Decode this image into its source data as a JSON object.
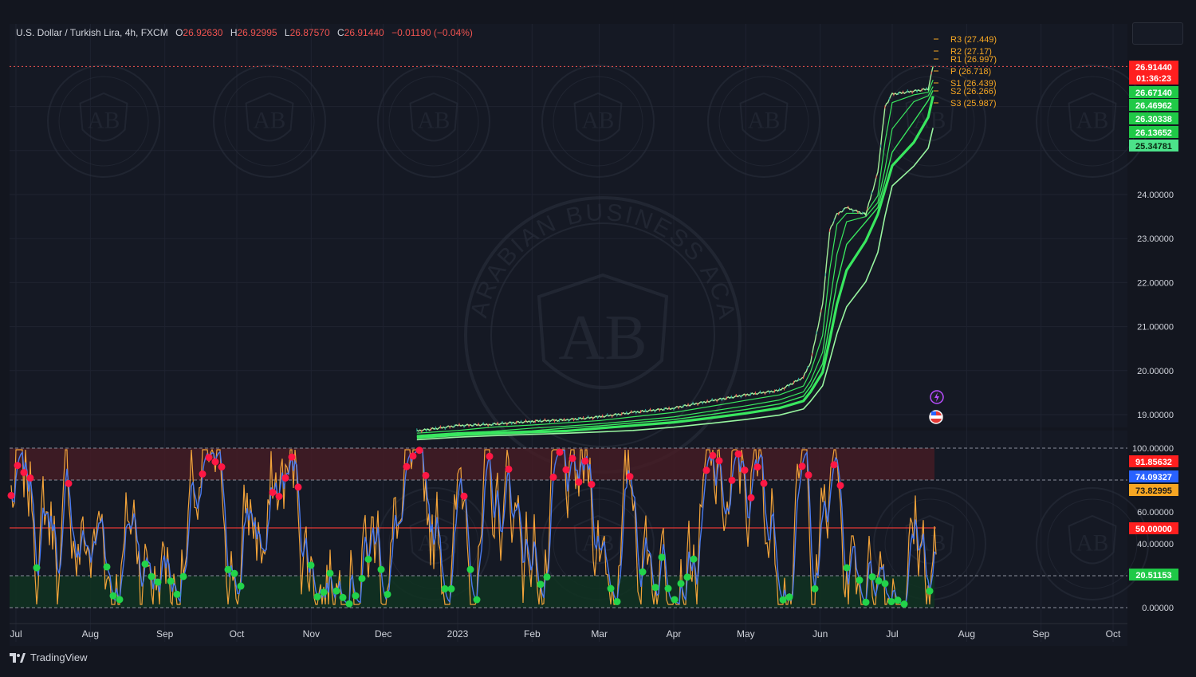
{
  "header": {
    "symbol": "U.S. Dollar / Turkish Lira, 4h, FXCM",
    "open_label": "O",
    "open": "26.92630",
    "high_label": "H",
    "high": "26.92995",
    "low_label": "L",
    "low": "26.87570",
    "close_label": "C",
    "close": "26.91440",
    "change": "−0.01190 (−0.04%)"
  },
  "branding": {
    "tradingview": "TradingView",
    "watermark_text": "ARABIAN BUSINESS ACADEMY",
    "watermark_initials": "AB"
  },
  "colors": {
    "background": "#13161f",
    "price_line": "#26c6da",
    "ema_green": "#39e75f",
    "ema_light": "#98f5a0",
    "rsi_blue": "#4a7bf0",
    "rsi_orange": "#f2a33a",
    "dot_red": "#ff1744",
    "dot_green": "#22d34a",
    "overbought_zone": "#4a1c24",
    "oversold_zone": "#0f3320",
    "pivot_orange": "#f5a623",
    "tag_red": "#ff1f1f",
    "tag_green": "#20c947",
    "tag_blue": "#2962ff",
    "tag_orange": "#f5a623"
  },
  "chart_data": [
    {
      "type": "line",
      "name": "price",
      "x_labels": [
        "Jul",
        "Aug",
        "Sep",
        "Oct",
        "Nov",
        "Dec",
        "2023",
        "Feb",
        "Mar",
        "Apr",
        "May",
        "Jun",
        "Jul",
        "Aug",
        "Sep",
        "Oct"
      ],
      "x": [
        "2022-12-15",
        "2023-01-01",
        "2023-01-15",
        "2023-02-01",
        "2023-02-15",
        "2023-03-01",
        "2023-03-15",
        "2023-04-01",
        "2023-04-15",
        "2023-05-01",
        "2023-05-15",
        "2023-05-25",
        "2023-05-28",
        "2023-06-02",
        "2023-06-05",
        "2023-06-08",
        "2023-06-12",
        "2023-06-20",
        "2023-06-25",
        "2023-06-28",
        "2023-07-01",
        "2023-07-10",
        "2023-07-16",
        "2023-07-18"
      ],
      "y": [
        18.63,
        18.75,
        18.78,
        18.85,
        18.88,
        18.95,
        19.05,
        19.15,
        19.3,
        19.45,
        19.55,
        19.85,
        20.2,
        21.5,
        23.2,
        23.55,
        23.7,
        23.55,
        24.5,
        26.0,
        26.28,
        26.35,
        26.4,
        26.91
      ],
      "y_ticks": [
        "19.00000",
        "20.00000",
        "21.00000",
        "22.00000",
        "23.00000",
        "24.00000"
      ],
      "ylim": [
        18.6,
        26.95
      ],
      "pivots": [
        {
          "label": "R3 (27.449)"
        },
        {
          "label": "R2 (27.17)"
        },
        {
          "label": "R1 (26.997)"
        },
        {
          "label": "P (26.718)"
        },
        {
          "label": "S1 (26.439)"
        },
        {
          "label": "S2 (26.266)"
        },
        {
          "label": "S3 (25.987)"
        }
      ],
      "price_tags": [
        {
          "value": "26.91440",
          "sub": "01:36:23",
          "color": "red"
        },
        {
          "value": "26.67140",
          "color": "green"
        },
        {
          "value": "26.46962",
          "color": "green"
        },
        {
          "value": "26.30338",
          "color": "green"
        },
        {
          "value": "26.13652",
          "color": "green"
        },
        {
          "value": "25.34781",
          "color": "light"
        }
      ]
    },
    {
      "type": "line",
      "name": "oscillator",
      "y_ticks": [
        "0.00000",
        "40.00000",
        "60.00000",
        "100.00000"
      ],
      "ylim": [
        0,
        100
      ],
      "levels": [
        80,
        50,
        20
      ],
      "tags": [
        {
          "value": "91.85632",
          "color": "red"
        },
        {
          "value": "74.09327",
          "color": "blue"
        },
        {
          "value": "73.82995",
          "color": "orange"
        },
        {
          "value": "50.00000",
          "color": "red"
        },
        {
          "value": "20.51153",
          "color": "green"
        }
      ]
    }
  ]
}
